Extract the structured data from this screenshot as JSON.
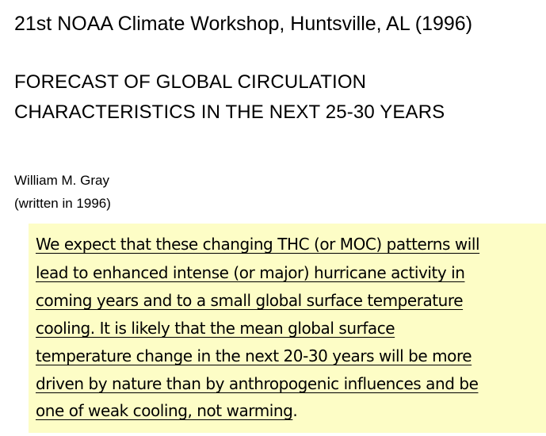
{
  "header": {
    "conference": "21st NOAA Climate Workshop, Huntsville, AL (1996)"
  },
  "paper": {
    "title_lines": [
      "FORECAST OF GLOBAL CIRCULATION",
      "CHARACTERISTICS IN THE NEXT 25-30 YEARS"
    ],
    "author": "William M. Gray",
    "note": "(written in 1996)"
  },
  "quote": {
    "lines": [
      "We expect that these changing THC (or MOC) patterns will ",
      "lead to enhanced intense (or major) hurricane activity in ",
      "coming years and to a small global surface temperature ",
      "cooling.  It is likely that the mean global surface ",
      "temperature change in the next 20-30 years will be more ",
      "driven by nature than by anthropogenic influences and be ",
      "one of weak cooling, not warming"
    ],
    "end_punctuation": ".",
    "highlight_color": "#fdfdc6"
  }
}
